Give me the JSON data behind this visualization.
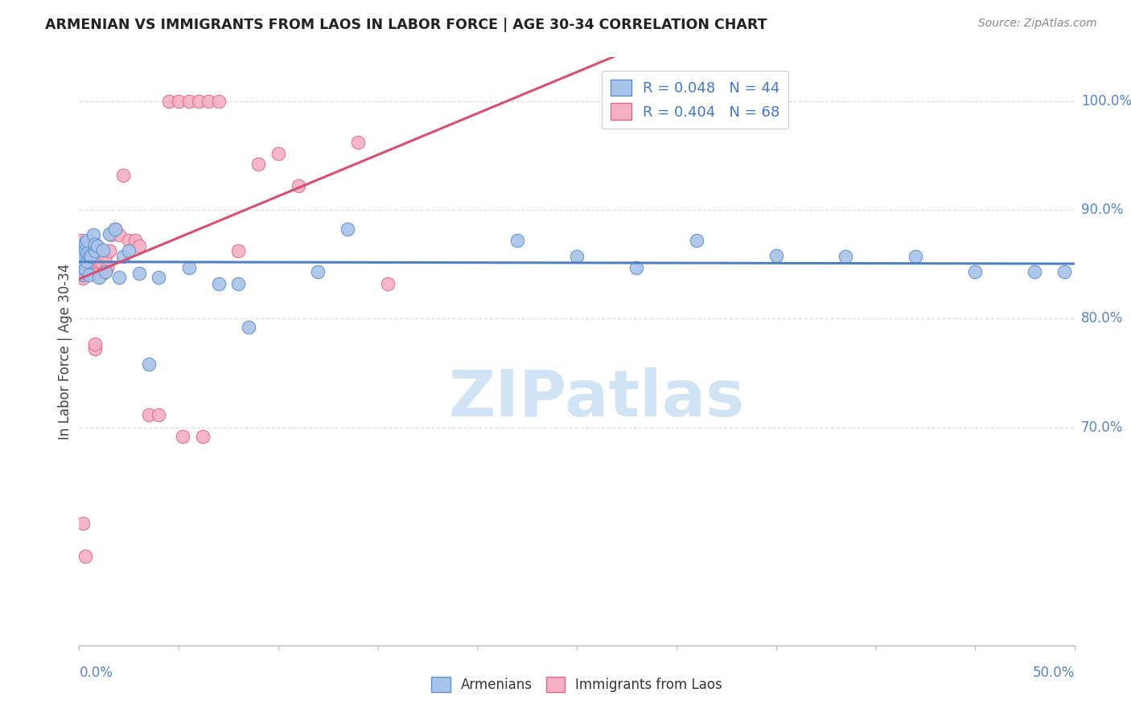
{
  "title": "ARMENIAN VS IMMIGRANTS FROM LAOS IN LABOR FORCE | AGE 30-34 CORRELATION CHART",
  "source": "Source: ZipAtlas.com",
  "ylabel": "In Labor Force | Age 30-34",
  "xlim": [
    0.0,
    0.5
  ],
  "ylim": [
    0.5,
    1.04
  ],
  "legend_r1_r": "R = 0.048",
  "legend_r1_n": "N = 44",
  "legend_r2_r": "R = 0.404",
  "legend_r2_n": "N = 68",
  "color_armenian_fill": "#a8c4e8",
  "color_armenian_edge": "#6090cc",
  "color_laos_fill": "#f5b0c5",
  "color_laos_edge": "#e06888",
  "color_armenian_line": "#5080c0",
  "color_laos_line": "#d85070",
  "color_title": "#222222",
  "color_source": "#888888",
  "color_axis_blue": "#5585c5",
  "color_legend_r": "#4477cc",
  "color_legend_n": "#222222",
  "watermark_text": "ZIPatlas",
  "watermark_color": "#d0e4f5",
  "grid_color": "#dddddd",
  "ytick_vals": [
    0.7,
    0.8,
    0.9,
    1.0
  ],
  "ytick_labels": [
    "70.0%",
    "80.0%",
    "90.0%",
    "100.0%"
  ],
  "xtick_vals": [
    0.0,
    0.05,
    0.1,
    0.15,
    0.2,
    0.25,
    0.3,
    0.35,
    0.4,
    0.45,
    0.5
  ],
  "armenian_x": [
    0.001,
    0.001,
    0.002,
    0.002,
    0.003,
    0.003,
    0.003,
    0.004,
    0.004,
    0.004,
    0.005,
    0.005,
    0.006,
    0.007,
    0.008,
    0.008,
    0.009,
    0.01,
    0.012,
    0.013,
    0.015,
    0.018,
    0.02,
    0.022,
    0.025,
    0.03,
    0.035,
    0.04,
    0.055,
    0.07,
    0.08,
    0.085,
    0.12,
    0.135,
    0.22,
    0.25,
    0.28,
    0.31,
    0.35,
    0.385,
    0.42,
    0.45,
    0.48,
    0.495
  ],
  "armenian_y": [
    0.853,
    0.862,
    0.858,
    0.84,
    0.863,
    0.845,
    0.87,
    0.853,
    0.86,
    0.872,
    0.858,
    0.84,
    0.857,
    0.877,
    0.862,
    0.868,
    0.867,
    0.838,
    0.863,
    0.843,
    0.878,
    0.882,
    0.838,
    0.857,
    0.862,
    0.842,
    0.758,
    0.838,
    0.847,
    0.832,
    0.832,
    0.792,
    0.843,
    0.882,
    0.872,
    0.857,
    0.847,
    0.872,
    0.858,
    0.857,
    0.857,
    0.843,
    0.843,
    0.843
  ],
  "laos_x": [
    0.001,
    0.001,
    0.001,
    0.001,
    0.001,
    0.001,
    0.001,
    0.001,
    0.001,
    0.002,
    0.002,
    0.002,
    0.002,
    0.002,
    0.002,
    0.002,
    0.002,
    0.002,
    0.003,
    0.003,
    0.003,
    0.003,
    0.004,
    0.004,
    0.004,
    0.005,
    0.005,
    0.005,
    0.006,
    0.006,
    0.007,
    0.007,
    0.008,
    0.008,
    0.009,
    0.009,
    0.01,
    0.01,
    0.011,
    0.012,
    0.013,
    0.014,
    0.015,
    0.016,
    0.018,
    0.02,
    0.022,
    0.025,
    0.028,
    0.03,
    0.035,
    0.04,
    0.045,
    0.05,
    0.055,
    0.06,
    0.065,
    0.07,
    0.08,
    0.09,
    0.1,
    0.11,
    0.14,
    0.155,
    0.002,
    0.003,
    0.052,
    0.062
  ],
  "laos_y": [
    0.852,
    0.862,
    0.857,
    0.872,
    0.842,
    0.857,
    0.842,
    0.862,
    0.847,
    0.857,
    0.847,
    0.842,
    0.862,
    0.852,
    0.837,
    0.857,
    0.842,
    0.857,
    0.842,
    0.857,
    0.852,
    0.842,
    0.842,
    0.857,
    0.842,
    0.842,
    0.847,
    0.862,
    0.852,
    0.842,
    0.857,
    0.842,
    0.772,
    0.777,
    0.847,
    0.842,
    0.857,
    0.852,
    0.852,
    0.842,
    0.857,
    0.847,
    0.862,
    0.877,
    0.882,
    0.877,
    0.932,
    0.872,
    0.872,
    0.867,
    0.712,
    0.712,
    1.0,
    1.0,
    1.0,
    1.0,
    1.0,
    1.0,
    0.862,
    0.942,
    0.952,
    0.922,
    0.962,
    0.832,
    0.612,
    0.582,
    0.692,
    0.692
  ]
}
